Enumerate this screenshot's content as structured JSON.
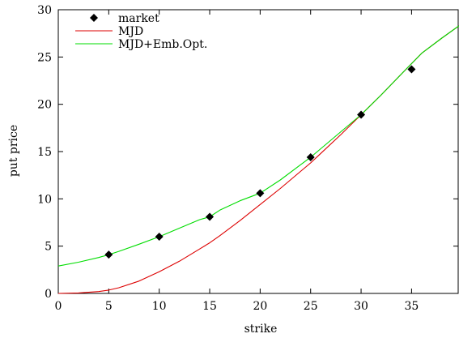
{
  "chart_data": {
    "type": "line",
    "xlabel": "strike",
    "ylabel": "put price",
    "xlim": [
      0,
      39.7
    ],
    "ylim": [
      0,
      30
    ],
    "xticks": [
      0,
      5,
      10,
      15,
      20,
      25,
      30,
      35
    ],
    "yticks": [
      0,
      5,
      10,
      15,
      20,
      25,
      30
    ],
    "grid": false,
    "legend_position": "top-left",
    "series": [
      {
        "name": "market",
        "kind": "scatter",
        "marker": "diamond",
        "color": "#000000",
        "x": [
          5,
          10,
          15,
          20,
          25,
          30,
          35
        ],
        "y": [
          4.1,
          6.0,
          8.1,
          10.6,
          14.4,
          18.9,
          23.7
        ]
      },
      {
        "name": "MJD",
        "kind": "line",
        "color": "#dd0000",
        "x": [
          0,
          2,
          4,
          5,
          6,
          8,
          10,
          12,
          14,
          15,
          16,
          18,
          20,
          22,
          24,
          25,
          26,
          28,
          30,
          32,
          34,
          35,
          36,
          38,
          39.7
        ],
        "y": [
          0.0,
          0.05,
          0.2,
          0.35,
          0.6,
          1.3,
          2.3,
          3.4,
          4.7,
          5.35,
          6.1,
          7.7,
          9.4,
          11.1,
          12.9,
          13.8,
          14.8,
          16.8,
          18.9,
          21.0,
          23.2,
          24.3,
          25.4,
          27.0,
          28.3
        ]
      },
      {
        "name": "MJD+Emb.Opt.",
        "kind": "line",
        "color": "#00dd00",
        "x": [
          0,
          2,
          4,
          5,
          6,
          8,
          10,
          12,
          14,
          15,
          16,
          18,
          20,
          22,
          24,
          25,
          26,
          28,
          30,
          32,
          34,
          35,
          36,
          38,
          39.7
        ],
        "y": [
          2.9,
          3.3,
          3.8,
          4.1,
          4.45,
          5.2,
          6.0,
          6.9,
          7.8,
          8.1,
          8.8,
          9.8,
          10.6,
          12.0,
          13.6,
          14.4,
          15.3,
          17.1,
          18.9,
          21.0,
          23.2,
          24.3,
          25.4,
          27.0,
          28.3
        ]
      }
    ]
  }
}
